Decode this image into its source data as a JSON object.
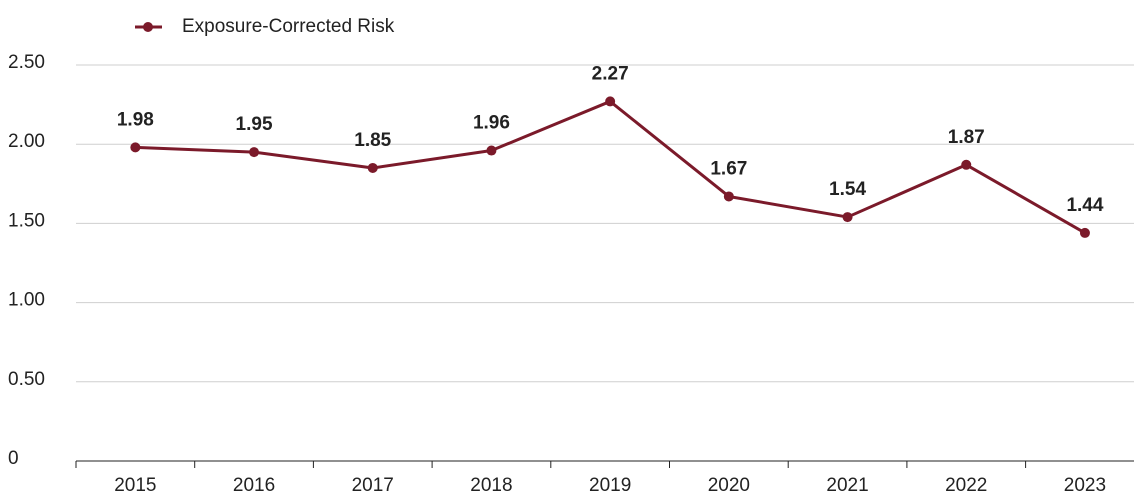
{
  "chart_data": {
    "type": "line",
    "categories": [
      "2015",
      "2016",
      "2017",
      "2018",
      "2019",
      "2020",
      "2021",
      "2022",
      "2023"
    ],
    "series": [
      {
        "name": "Exposure-Corrected Risk",
        "color": "#7b1a2a",
        "values": [
          1.98,
          1.95,
          1.85,
          1.96,
          2.27,
          1.67,
          1.54,
          1.87,
          1.44
        ]
      }
    ],
    "ylim": [
      0,
      2.5
    ],
    "yticks": [
      0,
      {
        "value": 0.5,
        "label": "0.50"
      },
      {
        "value": 1,
        "label": "1.00"
      },
      {
        "value": 1.5,
        "label": "1.50"
      },
      {
        "value": 2,
        "label": "2.00"
      },
      {
        "value": 2.5,
        "label": "2.50"
      }
    ],
    "grid": true,
    "legend": "top-left"
  }
}
